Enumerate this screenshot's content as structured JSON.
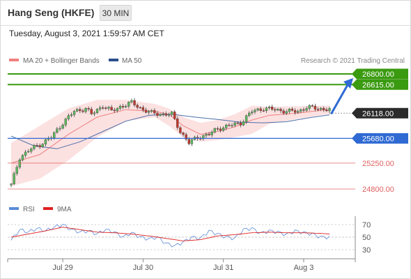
{
  "header": {
    "title": "Hang Seng (HKFE)",
    "timeframe": "30 MIN"
  },
  "datetime": "Tuesday, August 3, 2021 1:59:57 AM CET",
  "legend": {
    "bollinger": "MA 20 + Bollinger Bands",
    "ma50": "MA 50",
    "rsi": "RSI",
    "rsi_ma": "9MA"
  },
  "copyright": "Research © 2021 Trading Central",
  "colors": {
    "up": "#5cb85c",
    "down": "#c0392b",
    "resistance": "#3a9a10",
    "support": "#2f6ad3",
    "target": "#e06060",
    "bollinger": "#f08080",
    "ma50": "#4b6fa8",
    "rsi": "#5b8bd8",
    "rsi_ma": "#dd2020"
  },
  "chart_data": [
    {
      "type": "candlestick",
      "title": "Hang Seng (HKFE)",
      "timeframe": "30 MIN",
      "ylim": [
        24800,
        26900
      ],
      "x_ticks": [
        "Jul 29",
        "Jul 30",
        "Jul 31",
        "Aug 3"
      ],
      "last_price": 26118,
      "levels": [
        {
          "value": 26800,
          "label": "26800.00",
          "kind": "resistance"
        },
        {
          "value": 26615,
          "label": "26615.00",
          "kind": "resistance"
        },
        {
          "value": 26118,
          "label": "26118.00",
          "kind": "last"
        },
        {
          "value": 25680,
          "label": "25680.00",
          "kind": "support"
        },
        {
          "value": 25250,
          "label": "25250.00",
          "kind": "target"
        },
        {
          "value": 24800,
          "label": "24800.00",
          "kind": "target"
        }
      ],
      "arrow": {
        "from": 26118,
        "to": 26800,
        "direction": "up"
      },
      "close_path": [
        [
          0,
          24870
        ],
        [
          3,
          25350
        ],
        [
          7,
          25500
        ],
        [
          11,
          25600
        ],
        [
          14,
          25700
        ],
        [
          18,
          25950
        ],
        [
          22,
          26150
        ],
        [
          26,
          26200
        ],
        [
          28,
          26100
        ],
        [
          32,
          26250
        ],
        [
          35,
          26150
        ],
        [
          38,
          26230
        ],
        [
          42,
          26300
        ],
        [
          46,
          26180
        ],
        [
          49,
          26120
        ],
        [
          53,
          26100
        ],
        [
          56,
          26100
        ],
        [
          59,
          25800
        ],
        [
          62,
          25600
        ],
        [
          65,
          25700
        ],
        [
          69,
          25750
        ],
        [
          72,
          25850
        ],
        [
          76,
          25900
        ],
        [
          80,
          25950
        ],
        [
          84,
          26150
        ],
        [
          88,
          26200
        ],
        [
          92,
          26180
        ],
        [
          96,
          26150
        ],
        [
          100,
          26150
        ],
        [
          103,
          26220
        ],
        [
          107,
          26200
        ],
        [
          111,
          26180
        ]
      ],
      "series": [
        {
          "name": "MA 20 + Bollinger Bands",
          "mid": [
            [
              0,
              25250
            ],
            [
              10,
              25400
            ],
            [
              20,
              25750
            ],
            [
              30,
              26050
            ],
            [
              40,
              26180
            ],
            [
              50,
              26150
            ],
            [
              55,
              26100
            ],
            [
              60,
              25900
            ],
            [
              66,
              25750
            ],
            [
              72,
              25800
            ],
            [
              78,
              25880
            ],
            [
              84,
              26000
            ],
            [
              90,
              26080
            ],
            [
              100,
              26120
            ],
            [
              110,
              26180
            ]
          ],
          "upper": [
            [
              0,
              25600
            ],
            [
              10,
              25900
            ],
            [
              20,
              26200
            ],
            [
              30,
              26350
            ],
            [
              40,
              26350
            ],
            [
              50,
              26280
            ],
            [
              55,
              26200
            ],
            [
              60,
              26050
            ],
            [
              66,
              25950
            ],
            [
              72,
              26000
            ],
            [
              78,
              26100
            ],
            [
              84,
              26250
            ],
            [
              90,
              26230
            ],
            [
              100,
              26240
            ],
            [
              110,
              26250
            ]
          ],
          "lower": [
            [
              0,
              24850
            ],
            [
              10,
              24980
            ],
            [
              20,
              25300
            ],
            [
              30,
              25700
            ],
            [
              40,
              25980
            ],
            [
              50,
              26050
            ],
            [
              55,
              25900
            ],
            [
              60,
              25700
            ],
            [
              66,
              25620
            ],
            [
              72,
              25650
            ],
            [
              78,
              25700
            ],
            [
              84,
              25760
            ],
            [
              90,
              25930
            ],
            [
              100,
              26020
            ],
            [
              110,
              26100
            ]
          ]
        },
        {
          "name": "MA 50",
          "values": [
            [
              0,
              25720
            ],
            [
              8,
              25550
            ],
            [
              16,
              25500
            ],
            [
              24,
              25620
            ],
            [
              32,
              25800
            ],
            [
              40,
              25980
            ],
            [
              48,
              26080
            ],
            [
              56,
              26100
            ],
            [
              64,
              26050
            ],
            [
              72,
              26010
            ],
            [
              80,
              25960
            ],
            [
              88,
              25950
            ],
            [
              96,
              25970
            ],
            [
              104,
              26040
            ],
            [
              111,
              26090
            ]
          ]
        }
      ]
    },
    {
      "type": "line",
      "x_ticks": [
        "Jul 29",
        "Jul 30",
        "Jul 31",
        "Aug 3"
      ],
      "ylim": [
        20,
        80
      ],
      "y_ticks": [
        70,
        50,
        30
      ],
      "series": [
        {
          "name": "RSI",
          "values": [
            [
              0,
              45
            ],
            [
              3,
              62
            ],
            [
              6,
              58
            ],
            [
              9,
              64
            ],
            [
              12,
              60
            ],
            [
              15,
              66
            ],
            [
              18,
              70
            ],
            [
              21,
              62
            ],
            [
              24,
              58
            ],
            [
              27,
              60
            ],
            [
              30,
              55
            ],
            [
              33,
              62
            ],
            [
              36,
              58
            ],
            [
              39,
              50
            ],
            [
              42,
              57
            ],
            [
              45,
              50
            ],
            [
              48,
              47
            ],
            [
              51,
              50
            ],
            [
              54,
              40
            ],
            [
              57,
              36
            ],
            [
              60,
              42
            ],
            [
              63,
              50
            ],
            [
              66,
              48
            ],
            [
              69,
              60
            ],
            [
              72,
              55
            ],
            [
              75,
              50
            ],
            [
              78,
              48
            ],
            [
              81,
              62
            ],
            [
              84,
              64
            ],
            [
              87,
              56
            ],
            [
              90,
              60
            ],
            [
              93,
              58
            ],
            [
              96,
              54
            ],
            [
              99,
              60
            ],
            [
              102,
              57
            ],
            [
              105,
              55
            ],
            [
              108,
              50
            ],
            [
              111,
              50
            ]
          ]
        },
        {
          "name": "9MA",
          "values": [
            [
              0,
              50
            ],
            [
              6,
              55
            ],
            [
              12,
              60
            ],
            [
              18,
              66
            ],
            [
              24,
              62
            ],
            [
              30,
              58
            ],
            [
              36,
              57
            ],
            [
              42,
              55
            ],
            [
              48,
              52
            ],
            [
              54,
              48
            ],
            [
              60,
              44
            ],
            [
              66,
              46
            ],
            [
              72,
              52
            ],
            [
              78,
              54
            ],
            [
              84,
              57
            ],
            [
              90,
              58
            ],
            [
              96,
              57
            ],
            [
              102,
              57
            ],
            [
              108,
              56
            ],
            [
              111,
              55
            ]
          ]
        }
      ]
    }
  ]
}
